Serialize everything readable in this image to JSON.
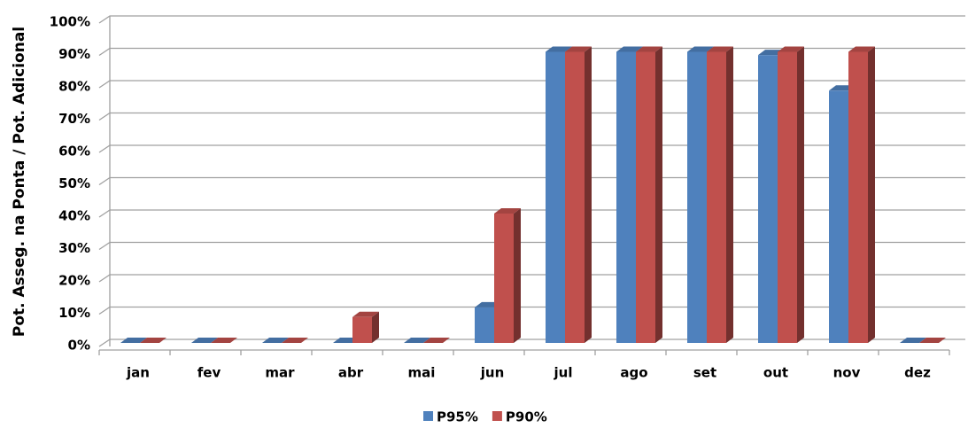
{
  "chart_data": {
    "type": "bar",
    "y_label": "Pot. Asseg. na Ponta / Pot. Adicional",
    "categories": [
      "jan",
      "fev",
      "mar",
      "abr",
      "mai",
      "jun",
      "jul",
      "ago",
      "set",
      "out",
      "nov",
      "dez"
    ],
    "series": [
      {
        "name": "P95%",
        "color": "#4f81bd",
        "values": [
          0,
          0,
          0,
          0,
          0,
          11,
          90,
          90,
          90,
          89,
          78,
          0
        ]
      },
      {
        "name": "P90%",
        "color": "#c0504d",
        "values": [
          0,
          0,
          0,
          8,
          0,
          40,
          90,
          90,
          90,
          90,
          90,
          0
        ]
      }
    ],
    "ylim": [
      0,
      100
    ],
    "yticks": [
      {
        "value": 0,
        "label": "0%"
      },
      {
        "value": 10,
        "label": "10%"
      },
      {
        "value": 20,
        "label": "20%"
      },
      {
        "value": 30,
        "label": "30%"
      },
      {
        "value": 40,
        "label": "40%"
      },
      {
        "value": 50,
        "label": "50%"
      },
      {
        "value": 60,
        "label": "60%"
      },
      {
        "value": 70,
        "label": "70%"
      },
      {
        "value": 80,
        "label": "80%"
      },
      {
        "value": 90,
        "label": "90%"
      },
      {
        "value": 100,
        "label": "100%"
      }
    ],
    "grid": true,
    "legend": "bottom"
  }
}
